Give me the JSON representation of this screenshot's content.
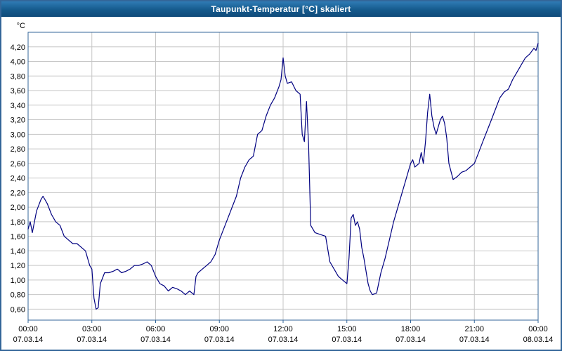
{
  "window": {
    "title": "Taupunkt-Temperatur [°C] skaliert"
  },
  "chart_data": {
    "type": "line",
    "title": "Taupunkt-Temperatur [°C] skaliert",
    "xlabel": "",
    "ylabel": "°C",
    "grid": true,
    "legend": "none",
    "colors": {
      "line": "#000080",
      "grid": "#c6c6c6",
      "plot_border": "#336699",
      "plot_bg": "#ffffff",
      "text": "#000000"
    },
    "ylim": [
      0.45,
      4.4
    ],
    "xlim_hours": [
      0,
      24
    ],
    "y_ticks": [
      {
        "v": 4.2,
        "label": "4,20"
      },
      {
        "v": 4.0,
        "label": "4,00"
      },
      {
        "v": 3.8,
        "label": "3,80"
      },
      {
        "v": 3.6,
        "label": "3,60"
      },
      {
        "v": 3.4,
        "label": "3,40"
      },
      {
        "v": 3.2,
        "label": "3,20"
      },
      {
        "v": 3.0,
        "label": "3,00"
      },
      {
        "v": 2.8,
        "label": "2,80"
      },
      {
        "v": 2.6,
        "label": "2,60"
      },
      {
        "v": 2.4,
        "label": "2,40"
      },
      {
        "v": 2.2,
        "label": "2,20"
      },
      {
        "v": 2.0,
        "label": "2,00"
      },
      {
        "v": 1.8,
        "label": "1,80"
      },
      {
        "v": 1.6,
        "label": "1,60"
      },
      {
        "v": 1.4,
        "label": "1,40"
      },
      {
        "v": 1.2,
        "label": "1,20"
      },
      {
        "v": 1.0,
        "label": "1,00"
      },
      {
        "v": 0.8,
        "label": "0,80"
      },
      {
        "v": 0.6,
        "label": "0,60"
      }
    ],
    "x_ticks": [
      {
        "hour": 0,
        "time": "00:00",
        "date": "07.03.14"
      },
      {
        "hour": 3,
        "time": "03:00",
        "date": "07.03.14"
      },
      {
        "hour": 6,
        "time": "06:00",
        "date": "07.03.14"
      },
      {
        "hour": 9,
        "time": "09:00",
        "date": "07.03.14"
      },
      {
        "hour": 12,
        "time": "12:00",
        "date": "07.03.14"
      },
      {
        "hour": 15,
        "time": "15:00",
        "date": "07.03.14"
      },
      {
        "hour": 18,
        "time": "18:00",
        "date": "07.03.14"
      },
      {
        "hour": 21,
        "time": "21:00",
        "date": "07.03.14"
      },
      {
        "hour": 24,
        "time": "00:00",
        "date": "08.03.14"
      }
    ],
    "series": [
      {
        "name": "Taupunkt-Temperatur skaliert",
        "points": [
          [
            0.0,
            1.7
          ],
          [
            0.1,
            1.8
          ],
          [
            0.2,
            1.65
          ],
          [
            0.4,
            1.95
          ],
          [
            0.6,
            2.1
          ],
          [
            0.7,
            2.15
          ],
          [
            0.9,
            2.05
          ],
          [
            1.1,
            1.9
          ],
          [
            1.3,
            1.8
          ],
          [
            1.5,
            1.75
          ],
          [
            1.7,
            1.6
          ],
          [
            1.9,
            1.55
          ],
          [
            2.1,
            1.5
          ],
          [
            2.3,
            1.5
          ],
          [
            2.5,
            1.45
          ],
          [
            2.7,
            1.4
          ],
          [
            2.9,
            1.2
          ],
          [
            3.0,
            1.15
          ],
          [
            3.1,
            0.75
          ],
          [
            3.2,
            0.6
          ],
          [
            3.3,
            0.62
          ],
          [
            3.4,
            0.95
          ],
          [
            3.6,
            1.1
          ],
          [
            3.8,
            1.1
          ],
          [
            4.0,
            1.12
          ],
          [
            4.2,
            1.15
          ],
          [
            4.4,
            1.1
          ],
          [
            4.6,
            1.12
          ],
          [
            4.8,
            1.15
          ],
          [
            5.0,
            1.2
          ],
          [
            5.2,
            1.2
          ],
          [
            5.4,
            1.22
          ],
          [
            5.6,
            1.25
          ],
          [
            5.8,
            1.2
          ],
          [
            6.0,
            1.05
          ],
          [
            6.2,
            0.95
          ],
          [
            6.4,
            0.92
          ],
          [
            6.6,
            0.85
          ],
          [
            6.8,
            0.9
          ],
          [
            7.0,
            0.88
          ],
          [
            7.2,
            0.85
          ],
          [
            7.4,
            0.8
          ],
          [
            7.6,
            0.85
          ],
          [
            7.8,
            0.8
          ],
          [
            7.9,
            1.05
          ],
          [
            8.0,
            1.1
          ],
          [
            8.2,
            1.15
          ],
          [
            8.4,
            1.2
          ],
          [
            8.6,
            1.25
          ],
          [
            8.8,
            1.35
          ],
          [
            9.0,
            1.55
          ],
          [
            9.2,
            1.7
          ],
          [
            9.4,
            1.85
          ],
          [
            9.6,
            2.0
          ],
          [
            9.8,
            2.15
          ],
          [
            10.0,
            2.4
          ],
          [
            10.2,
            2.55
          ],
          [
            10.4,
            2.65
          ],
          [
            10.6,
            2.7
          ],
          [
            10.8,
            3.0
          ],
          [
            11.0,
            3.05
          ],
          [
            11.2,
            3.25
          ],
          [
            11.4,
            3.4
          ],
          [
            11.6,
            3.5
          ],
          [
            11.8,
            3.65
          ],
          [
            11.9,
            3.75
          ],
          [
            12.0,
            4.05
          ],
          [
            12.1,
            3.8
          ],
          [
            12.2,
            3.7
          ],
          [
            12.4,
            3.72
          ],
          [
            12.6,
            3.6
          ],
          [
            12.8,
            3.55
          ],
          [
            12.9,
            3.0
          ],
          [
            13.0,
            2.9
          ],
          [
            13.1,
            3.45
          ],
          [
            13.2,
            2.85
          ],
          [
            13.3,
            1.75
          ],
          [
            13.5,
            1.65
          ],
          [
            13.8,
            1.62
          ],
          [
            14.0,
            1.6
          ],
          [
            14.2,
            1.25
          ],
          [
            14.4,
            1.15
          ],
          [
            14.6,
            1.05
          ],
          [
            14.8,
            1.0
          ],
          [
            15.0,
            0.95
          ],
          [
            15.1,
            1.3
          ],
          [
            15.2,
            1.85
          ],
          [
            15.3,
            1.9
          ],
          [
            15.4,
            1.75
          ],
          [
            15.5,
            1.8
          ],
          [
            15.6,
            1.7
          ],
          [
            15.7,
            1.45
          ],
          [
            15.8,
            1.3
          ],
          [
            16.0,
            0.95
          ],
          [
            16.1,
            0.85
          ],
          [
            16.2,
            0.8
          ],
          [
            16.4,
            0.82
          ],
          [
            16.6,
            1.1
          ],
          [
            16.8,
            1.3
          ],
          [
            17.0,
            1.55
          ],
          [
            17.2,
            1.8
          ],
          [
            17.4,
            2.0
          ],
          [
            17.6,
            2.2
          ],
          [
            17.8,
            2.4
          ],
          [
            18.0,
            2.6
          ],
          [
            18.1,
            2.65
          ],
          [
            18.2,
            2.55
          ],
          [
            18.4,
            2.6
          ],
          [
            18.5,
            2.75
          ],
          [
            18.6,
            2.6
          ],
          [
            18.7,
            2.9
          ],
          [
            18.8,
            3.3
          ],
          [
            18.9,
            3.55
          ],
          [
            19.0,
            3.25
          ],
          [
            19.1,
            3.1
          ],
          [
            19.2,
            3.0
          ],
          [
            19.4,
            3.2
          ],
          [
            19.5,
            3.25
          ],
          [
            19.6,
            3.15
          ],
          [
            19.7,
            2.95
          ],
          [
            19.8,
            2.6
          ],
          [
            20.0,
            2.38
          ],
          [
            20.2,
            2.42
          ],
          [
            20.4,
            2.48
          ],
          [
            20.6,
            2.5
          ],
          [
            20.8,
            2.55
          ],
          [
            21.0,
            2.6
          ],
          [
            21.2,
            2.75
          ],
          [
            21.4,
            2.9
          ],
          [
            21.6,
            3.05
          ],
          [
            21.8,
            3.2
          ],
          [
            22.0,
            3.35
          ],
          [
            22.2,
            3.5
          ],
          [
            22.4,
            3.58
          ],
          [
            22.6,
            3.62
          ],
          [
            22.8,
            3.75
          ],
          [
            23.0,
            3.85
          ],
          [
            23.2,
            3.95
          ],
          [
            23.4,
            4.05
          ],
          [
            23.6,
            4.1
          ],
          [
            23.8,
            4.18
          ],
          [
            23.9,
            4.15
          ],
          [
            24.0,
            4.25
          ]
        ]
      }
    ]
  }
}
